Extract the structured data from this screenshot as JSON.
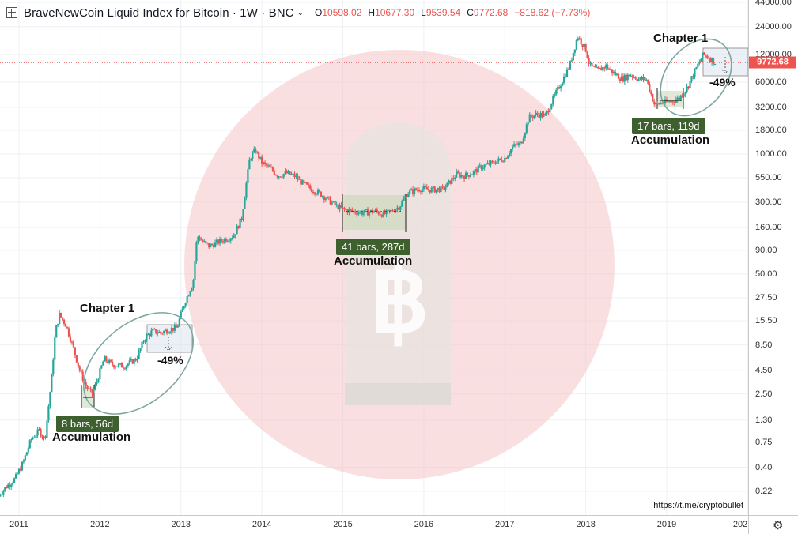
{
  "header": {
    "title": "BraveNewCoin Liquid Index for Bitcoin · 1W · BNC",
    "ohlc": [
      {
        "k": "O",
        "v": "10598.02"
      },
      {
        "k": "H",
        "v": "10677.30"
      },
      {
        "k": "L",
        "v": "9539.54"
      },
      {
        "k": "C",
        "v": "9772.68"
      },
      {
        "k": "",
        "v": "−818.62 (−7.73%)"
      }
    ]
  },
  "colors": {
    "up": "#26a69a",
    "down": "#ef5350",
    "accent_box": "#3e5f2e",
    "ellipse": "#7ea6a0",
    "watermark": "#f5c5c9"
  },
  "price_axis": {
    "ticks": [
      "44000.00",
      "24000.00",
      "12000.00",
      "6000.00",
      "3200.00",
      "1800.00",
      "1000.00",
      "550.00",
      "300.00",
      "160.00",
      "90.00",
      "50.00",
      "27.50",
      "15.50",
      "8.50",
      "4.50",
      "2.50",
      "1.30",
      "0.75",
      "0.40",
      "0.22"
    ],
    "last_price": "9772.68"
  },
  "time_axis": {
    "labels": [
      "2011",
      "2012",
      "2013",
      "2014",
      "2015",
      "2016",
      "2017",
      "2018",
      "2019",
      "202"
    ]
  },
  "annotations": {
    "box1_label": "8 bars, 56d",
    "box2_label": "41 bars, 287d",
    "box3_label": "17 bars, 119d",
    "accumulation": "Accumulation",
    "chapter": "Chapter 1",
    "drop": "-49%"
  },
  "footer": {
    "url": "https://t.me/cryptobullet"
  },
  "chart_data": {
    "type": "line",
    "title": "BraveNewCoin Liquid Index for Bitcoin · 1W · BNC",
    "scale": "log",
    "ylim": [
      0.18,
      44000
    ],
    "xlim": [
      2010.75,
      2019.95
    ],
    "grid": true,
    "series": [
      {
        "name": "BraveNewCoin Liquid Index for Bitcoin",
        "x": [
          2010.75,
          2010.85,
          2010.95,
          2011.05,
          2011.15,
          2011.25,
          2011.32,
          2011.4,
          2011.45,
          2011.5,
          2011.58,
          2011.66,
          2011.75,
          2011.83,
          2011.9,
          2011.95,
          2012.05,
          2012.15,
          2012.3,
          2012.45,
          2012.55,
          2012.65,
          2012.75,
          2012.85,
          2012.95,
          2013.05,
          2013.15,
          2013.2,
          2013.28,
          2013.35,
          2013.45,
          2013.55,
          2013.65,
          2013.75,
          2013.85,
          2013.92,
          2014.0,
          2014.1,
          2014.2,
          2014.3,
          2014.4,
          2014.5,
          2014.6,
          2014.7,
          2014.8,
          2014.9,
          2015.0,
          2015.1,
          2015.25,
          2015.4,
          2015.5,
          2015.6,
          2015.7,
          2015.8,
          2015.95,
          2016.1,
          2016.25,
          2016.4,
          2016.5,
          2016.6,
          2016.7,
          2016.85,
          2017.0,
          2017.1,
          2017.2,
          2017.3,
          2017.4,
          2017.5,
          2017.6,
          2017.7,
          2017.8,
          2017.9,
          2017.95,
          2018.0,
          2018.05,
          2018.15,
          2018.25,
          2018.35,
          2018.45,
          2018.55,
          2018.65,
          2018.75,
          2018.85,
          2018.9,
          2018.95,
          2019.05,
          2019.15,
          2019.25,
          2019.35,
          2019.45,
          2019.5,
          2019.55,
          2019.6
        ],
        "values": [
          0.2,
          0.25,
          0.3,
          0.45,
          0.8,
          1.0,
          0.8,
          3.5,
          12.0,
          18.0,
          14.0,
          8.5,
          4.5,
          3.0,
          2.5,
          3.2,
          6.0,
          5.2,
          5.0,
          6.0,
          10.0,
          12.0,
          11.5,
          12.5,
          13.0,
          25.0,
          40.0,
          130.0,
          110.0,
          100.0,
          110.0,
          120.0,
          130.0,
          200.0,
          900.0,
          1100.0,
          800.0,
          700.0,
          580.0,
          620.0,
          580.0,
          480.0,
          420.0,
          380.0,
          330.0,
          280.0,
          250.0,
          240.0,
          230.0,
          240.0,
          220.0,
          240.0,
          270.0,
          380.0,
          420.0,
          410.0,
          420.0,
          600.0,
          580.0,
          620.0,
          720.0,
          800.0,
          900.0,
          1200.0,
          1300.0,
          2500.0,
          2700.0,
          2600.0,
          4000.0,
          6000.0,
          9000.0,
          19000.0,
          16000.0,
          13500.0,
          9000.0,
          8000.0,
          9000.0,
          7500.0,
          6500.0,
          7300.0,
          6500.0,
          6400.0,
          3400.0,
          3500.0,
          3600.0,
          3700.0,
          4000.0,
          5200.0,
          8000.0,
          12000.0,
          11500.0,
          10500.0,
          9772.68
        ]
      }
    ],
    "annotations": [
      {
        "text": "8 bars, 56d",
        "note": "Accumulation"
      },
      {
        "text": "41 bars, 287d",
        "note": "Accumulation"
      },
      {
        "text": "17 bars, 119d",
        "note": "Accumulation"
      },
      {
        "text": "Chapter 1",
        "drop": "-49%"
      },
      {
        "text": "Chapter 1",
        "drop": "-49%"
      }
    ]
  }
}
